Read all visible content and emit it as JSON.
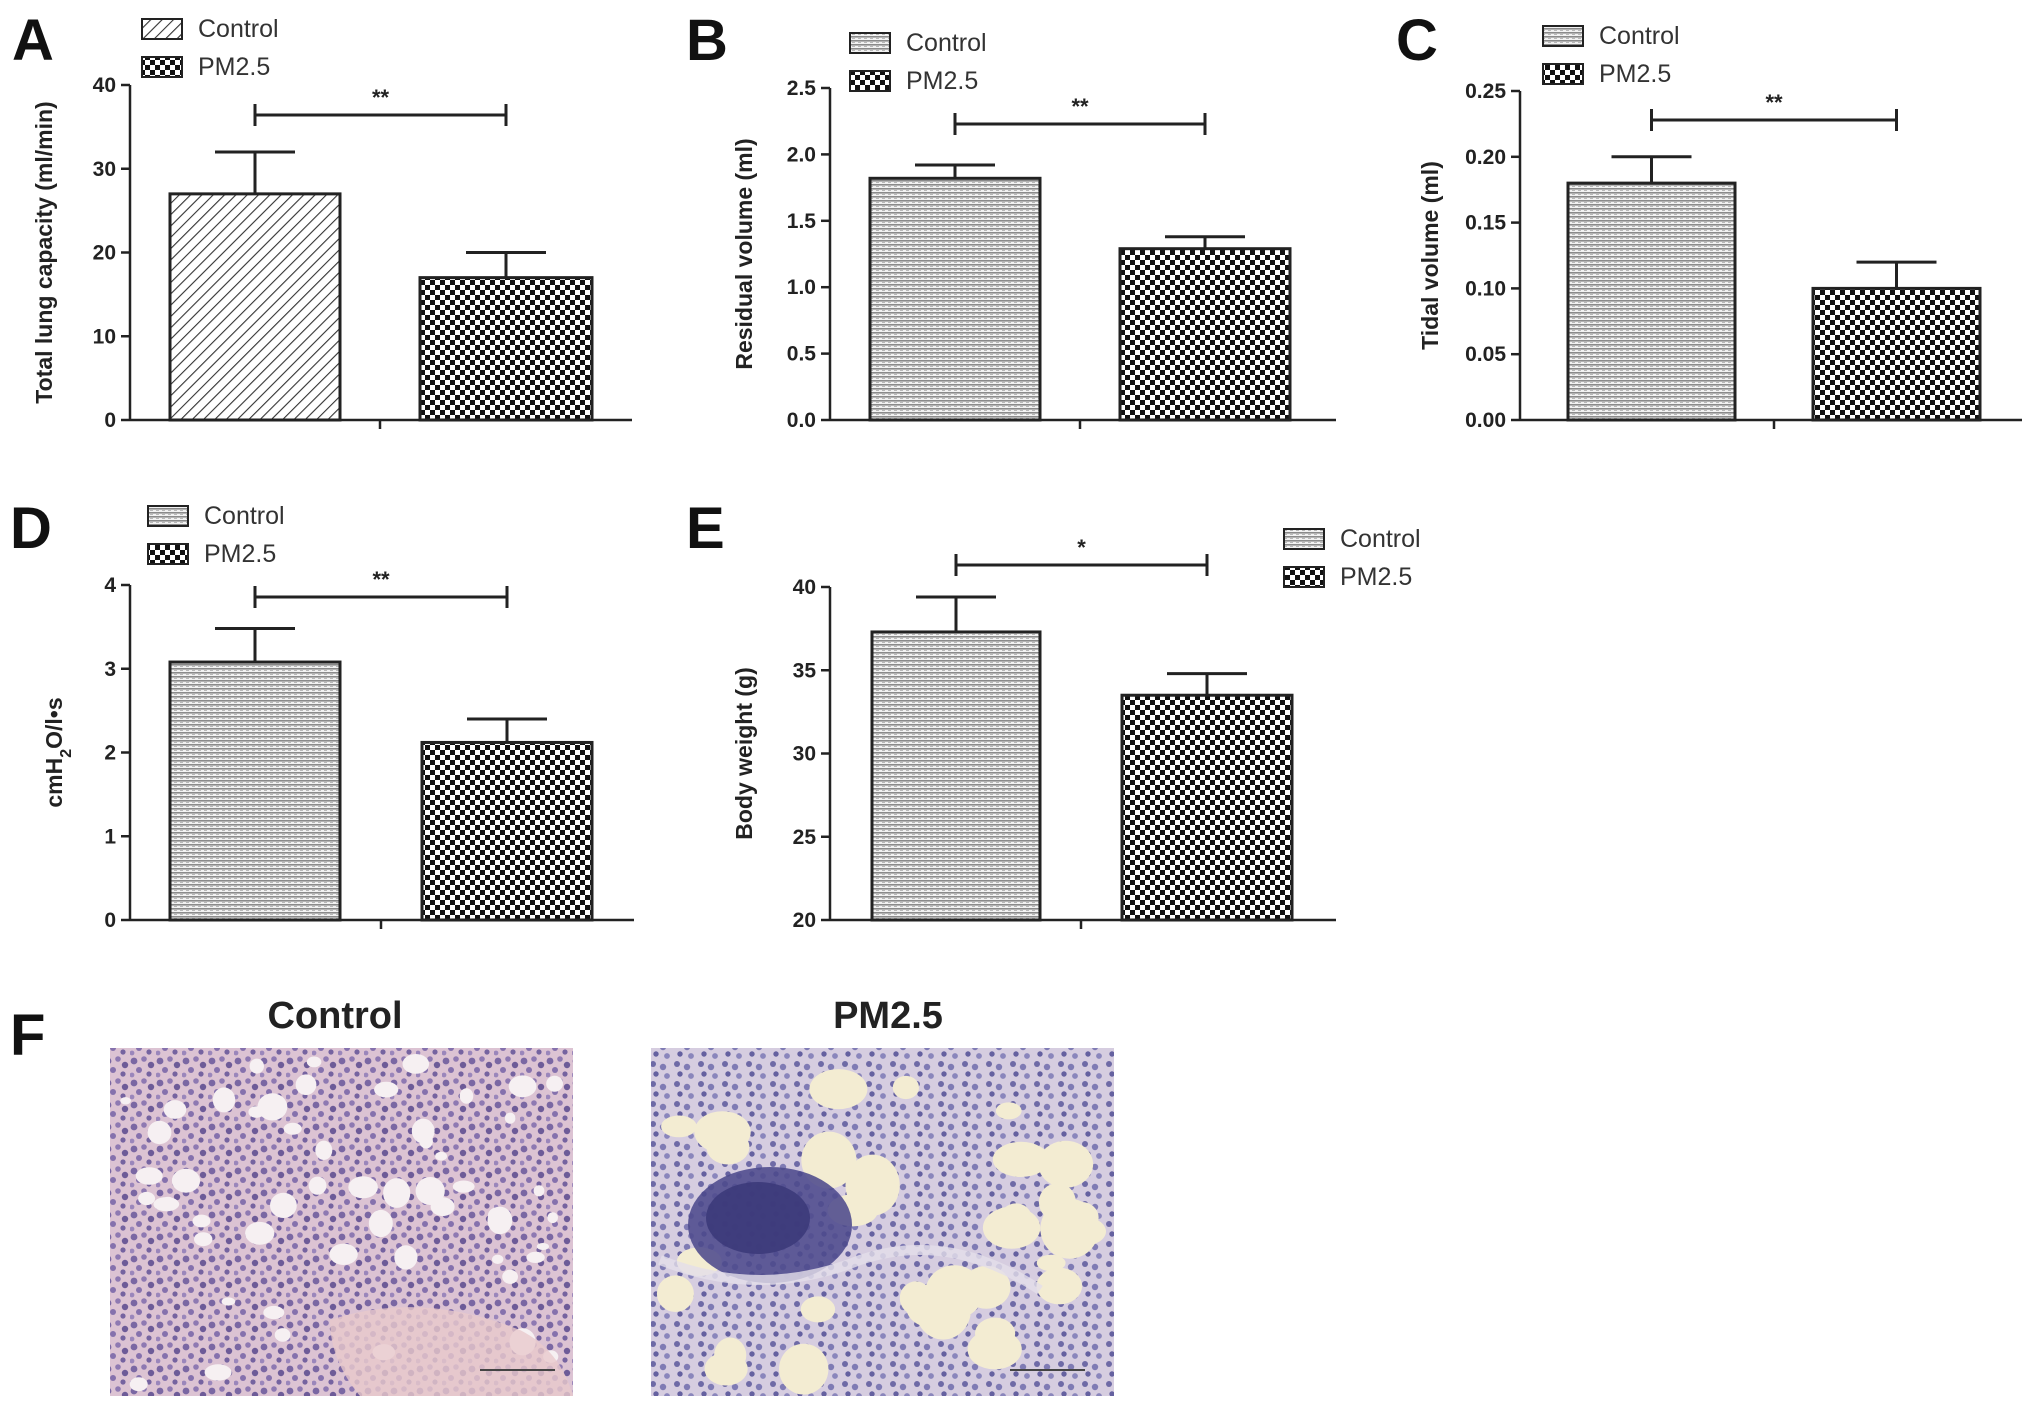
{
  "chart_data": [
    {
      "panel": "A",
      "type": "bar",
      "categories": [
        "Control",
        "PM2.5"
      ],
      "values": [
        27,
        17
      ],
      "errors": [
        5,
        3
      ],
      "ylabel": "Total lung capacity (ml/min)",
      "ylim": [
        0,
        40
      ],
      "yticks": [
        "0",
        "10",
        "20",
        "30",
        "40"
      ],
      "significance": "**",
      "legend": [
        "Control",
        "PM2.5"
      ],
      "legend_placement": "top-left"
    },
    {
      "panel": "B",
      "type": "bar",
      "categories": [
        "Control",
        "PM2.5"
      ],
      "values": [
        1.82,
        1.29
      ],
      "errors": [
        0.1,
        0.09
      ],
      "ylabel": "Residual volume (ml)",
      "ylim": [
        0,
        2.5
      ],
      "yticks": [
        "0.0",
        "0.5",
        "1.0",
        "1.5",
        "2.0",
        "2.5"
      ],
      "significance": "**",
      "legend": [
        "Control",
        "PM2.5"
      ],
      "legend_placement": "top-left"
    },
    {
      "panel": "C",
      "type": "bar",
      "categories": [
        "Control",
        "PM2.5"
      ],
      "values": [
        0.18,
        0.1
      ],
      "errors": [
        0.02,
        0.02
      ],
      "ylabel": "Tidal volume (ml)",
      "ylim": [
        0,
        0.25
      ],
      "yticks": [
        "0.00",
        "0.05",
        "0.10",
        "0.15",
        "0.20",
        "0.25"
      ],
      "significance": "**",
      "legend": [
        "Control",
        "PM2.5"
      ],
      "legend_placement": "top-left"
    },
    {
      "panel": "D",
      "type": "bar",
      "categories": [
        "Control",
        "PM2.5"
      ],
      "values": [
        3.08,
        2.12
      ],
      "errors": [
        0.4,
        0.28
      ],
      "ylabel": "cmH2O/l•s",
      "ylim": [
        0,
        4
      ],
      "yticks": [
        "0",
        "1",
        "2",
        "3",
        "4"
      ],
      "significance": "**",
      "legend": [
        "Control",
        "PM2.5"
      ],
      "legend_placement": "top-left"
    },
    {
      "panel": "E",
      "type": "bar",
      "categories": [
        "Control",
        "PM2.5"
      ],
      "values": [
        37.3,
        33.5
      ],
      "errors": [
        2.1,
        1.3
      ],
      "ylabel": "Body weight (g)",
      "ylim": [
        20,
        40
      ],
      "yticks": [
        "20",
        "25",
        "30",
        "35",
        "40"
      ],
      "significance": "*",
      "legend": [
        "Control",
        "PM2.5"
      ],
      "legend_placement": "top-right"
    }
  ],
  "histology": {
    "panel": "F",
    "images": [
      {
        "title": "Control"
      },
      {
        "title": "PM2.5"
      }
    ]
  },
  "colors": {
    "ink": "#222222",
    "control_fill": "#c9c9c9",
    "pm_fill": "#ffffff",
    "tissue_pink": "#e6cbd6",
    "tissue_purple": "#7d6aa6",
    "airspace": "#f4ecdf"
  }
}
